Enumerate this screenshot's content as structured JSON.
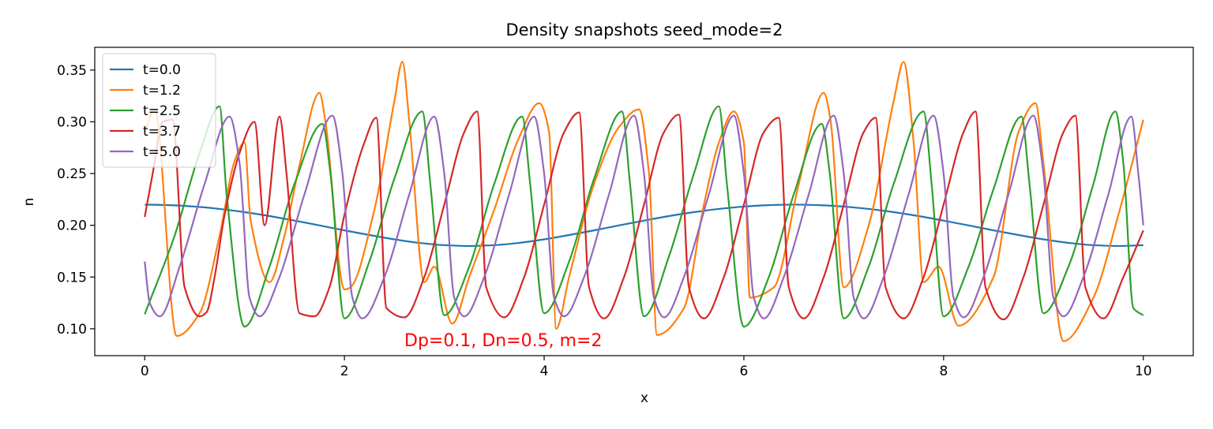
{
  "chart_data": {
    "type": "line",
    "title": "Density snapshots  seed_mode=2",
    "xlabel": "x",
    "ylabel": "n",
    "xlim": [
      -0.5,
      10.5
    ],
    "ylim": [
      0.074,
      0.372
    ],
    "x_ticks": [
      0,
      2,
      4,
      6,
      8,
      10
    ],
    "x_tick_labels": [
      "0",
      "2",
      "4",
      "6",
      "8",
      "10"
    ],
    "y_ticks": [
      0.1,
      0.15,
      0.2,
      0.25,
      0.3,
      0.35
    ],
    "y_tick_labels": [
      "0.10",
      "0.15",
      "0.20",
      "0.25",
      "0.30",
      "0.35"
    ],
    "grid": false,
    "legend_position": "top-left",
    "annotation": {
      "text": "Dp=0.1, Dn=0.5, m=2",
      "color": "#ff0000",
      "x": 2.6,
      "y": 0.083
    },
    "series": [
      {
        "name": "t=0.0",
        "color": "#1f77b4",
        "x": [
          0,
          0.25,
          0.5,
          0.75,
          1.0,
          1.25,
          1.5,
          1.75,
          2.0,
          2.25,
          2.5,
          2.75,
          3.0,
          3.25,
          3.5,
          3.75,
          4.0,
          4.25,
          4.5,
          4.75,
          5.0,
          5.25,
          5.5,
          5.75,
          6.0,
          6.25,
          6.5,
          6.75,
          7.0,
          7.25,
          7.5,
          7.75,
          8.0,
          8.25,
          8.5,
          8.75,
          9.0,
          9.25,
          9.5,
          9.75,
          10.0
        ],
        "y": [
          0.22,
          0.2195,
          0.2181,
          0.2158,
          0.2127,
          0.2089,
          0.2045,
          0.1999,
          0.1951,
          0.1906,
          0.1864,
          0.183,
          0.1808,
          0.18,
          0.1808,
          0.183,
          0.1864,
          0.1906,
          0.1951,
          0.1999,
          0.2045,
          0.2089,
          0.2127,
          0.2158,
          0.2181,
          0.2195,
          0.22,
          0.2195,
          0.2181,
          0.2158,
          0.2127,
          0.2089,
          0.2045,
          0.1999,
          0.1951,
          0.1906,
          0.1864,
          0.183,
          0.1808,
          0.18,
          0.1808
        ]
      },
      {
        "name": "t=1.2",
        "color": "#ff7f0e",
        "x": [
          0,
          0.1,
          0.32,
          0.55,
          0.75,
          0.9,
          1.0,
          1.06,
          1.25,
          1.4,
          1.55,
          1.75,
          1.81,
          2.0,
          2.06,
          2.3,
          2.5,
          2.58,
          2.65,
          2.8,
          2.9,
          3.08,
          3.25,
          3.5,
          3.75,
          3.95,
          4.05,
          4.12,
          4.25,
          4.5,
          4.75,
          4.95,
          5.05,
          5.13,
          5.4,
          5.6,
          5.75,
          5.9,
          6.0,
          6.06,
          6.3,
          6.55,
          6.8,
          6.87,
          7.0,
          7.25,
          7.5,
          7.6,
          7.7,
          7.8,
          7.95,
          8.15,
          8.5,
          8.75,
          8.92,
          9.0,
          9.2,
          9.5,
          9.75,
          10.0
        ],
        "y": [
          0.29,
          0.312,
          0.093,
          0.115,
          0.19,
          0.262,
          0.28,
          0.205,
          0.145,
          0.19,
          0.258,
          0.328,
          0.3,
          0.138,
          0.14,
          0.215,
          0.32,
          0.358,
          0.3,
          0.145,
          0.16,
          0.105,
          0.15,
          0.215,
          0.285,
          0.318,
          0.29,
          0.1,
          0.15,
          0.24,
          0.295,
          0.312,
          0.25,
          0.094,
          0.12,
          0.22,
          0.28,
          0.31,
          0.28,
          0.13,
          0.14,
          0.24,
          0.328,
          0.3,
          0.14,
          0.2,
          0.32,
          0.358,
          0.28,
          0.145,
          0.16,
          0.103,
          0.15,
          0.29,
          0.318,
          0.26,
          0.088,
          0.13,
          0.21,
          0.302
        ]
      },
      {
        "name": "t=2.5",
        "color": "#2ca02c",
        "x": [
          0,
          0.3,
          0.55,
          0.75,
          0.82,
          1.0,
          1.25,
          1.5,
          1.78,
          1.86,
          2.0,
          2.25,
          2.5,
          2.78,
          2.86,
          3.0,
          3.25,
          3.5,
          3.78,
          3.86,
          4.0,
          4.25,
          4.5,
          4.78,
          4.86,
          5.0,
          5.25,
          5.5,
          5.75,
          5.83,
          6.0,
          6.25,
          6.5,
          6.78,
          6.86,
          7.0,
          7.25,
          7.5,
          7.8,
          7.88,
          8.0,
          8.25,
          8.5,
          8.78,
          8.86,
          9.0,
          9.25,
          9.5,
          9.72,
          9.8,
          9.9,
          10.0
        ],
        "y": [
          0.114,
          0.19,
          0.27,
          0.315,
          0.23,
          0.102,
          0.16,
          0.24,
          0.298,
          0.25,
          0.11,
          0.165,
          0.245,
          0.31,
          0.24,
          0.113,
          0.16,
          0.24,
          0.305,
          0.24,
          0.115,
          0.165,
          0.245,
          0.31,
          0.24,
          0.112,
          0.17,
          0.25,
          0.315,
          0.24,
          0.102,
          0.15,
          0.23,
          0.298,
          0.25,
          0.11,
          0.16,
          0.24,
          0.31,
          0.24,
          0.112,
          0.16,
          0.235,
          0.305,
          0.24,
          0.115,
          0.16,
          0.24,
          0.31,
          0.26,
          0.12,
          0.113
        ]
      },
      {
        "name": "t=3.7",
        "color": "#d62728",
        "x": [
          0,
          0.08,
          0.18,
          0.28,
          0.4,
          0.55,
          0.62,
          0.7,
          0.8,
          0.95,
          1.1,
          1.2,
          1.35,
          1.42,
          1.55,
          1.7,
          1.85,
          2.0,
          2.2,
          2.32,
          2.42,
          2.6,
          2.8,
          3.0,
          3.2,
          3.33,
          3.42,
          3.6,
          3.8,
          4.0,
          4.2,
          4.35,
          4.45,
          4.6,
          4.8,
          5.0,
          5.2,
          5.35,
          5.45,
          5.6,
          5.8,
          6.0,
          6.2,
          6.35,
          6.45,
          6.6,
          6.8,
          7.0,
          7.2,
          7.32,
          7.42,
          7.6,
          7.8,
          8.0,
          8.2,
          8.32,
          8.42,
          8.6,
          8.8,
          9.0,
          9.2,
          9.32,
          9.42,
          9.6,
          9.8,
          10.0
        ],
        "y": [
          0.208,
          0.25,
          0.3,
          0.302,
          0.14,
          0.112,
          0.116,
          0.15,
          0.21,
          0.27,
          0.3,
          0.2,
          0.305,
          0.25,
          0.115,
          0.112,
          0.14,
          0.21,
          0.28,
          0.304,
          0.12,
          0.111,
          0.15,
          0.22,
          0.29,
          0.31,
          0.14,
          0.111,
          0.15,
          0.22,
          0.29,
          0.309,
          0.14,
          0.11,
          0.15,
          0.22,
          0.29,
          0.307,
          0.14,
          0.11,
          0.15,
          0.22,
          0.29,
          0.304,
          0.14,
          0.11,
          0.15,
          0.22,
          0.29,
          0.304,
          0.14,
          0.11,
          0.15,
          0.22,
          0.29,
          0.31,
          0.14,
          0.109,
          0.15,
          0.22,
          0.29,
          0.306,
          0.14,
          0.11,
          0.15,
          0.195
        ]
      },
      {
        "name": "t=5.0",
        "color": "#9467bd",
        "x": [
          0,
          0.05,
          0.15,
          0.35,
          0.6,
          0.85,
          0.95,
          1.05,
          1.15,
          1.35,
          1.6,
          1.88,
          1.98,
          2.08,
          2.18,
          2.4,
          2.65,
          2.9,
          3.0,
          3.1,
          3.2,
          3.4,
          3.65,
          3.9,
          4.0,
          4.1,
          4.2,
          4.4,
          4.65,
          4.9,
          5.0,
          5.1,
          5.2,
          5.4,
          5.65,
          5.9,
          6.0,
          6.1,
          6.2,
          6.4,
          6.65,
          6.9,
          7.0,
          7.1,
          7.2,
          7.4,
          7.65,
          7.9,
          8.0,
          8.1,
          8.2,
          8.4,
          8.65,
          8.9,
          9.0,
          9.1,
          9.2,
          9.4,
          9.65,
          9.88,
          9.95,
          10.0
        ],
        "y": [
          0.165,
          0.125,
          0.112,
          0.16,
          0.24,
          0.305,
          0.26,
          0.13,
          0.112,
          0.15,
          0.23,
          0.306,
          0.25,
          0.13,
          0.11,
          0.15,
          0.23,
          0.305,
          0.25,
          0.13,
          0.112,
          0.15,
          0.23,
          0.305,
          0.25,
          0.13,
          0.112,
          0.15,
          0.23,
          0.306,
          0.25,
          0.13,
          0.111,
          0.15,
          0.23,
          0.306,
          0.25,
          0.13,
          0.11,
          0.15,
          0.23,
          0.306,
          0.25,
          0.13,
          0.11,
          0.15,
          0.23,
          0.306,
          0.25,
          0.13,
          0.111,
          0.15,
          0.23,
          0.306,
          0.25,
          0.13,
          0.112,
          0.15,
          0.23,
          0.305,
          0.25,
          0.2
        ]
      }
    ]
  }
}
